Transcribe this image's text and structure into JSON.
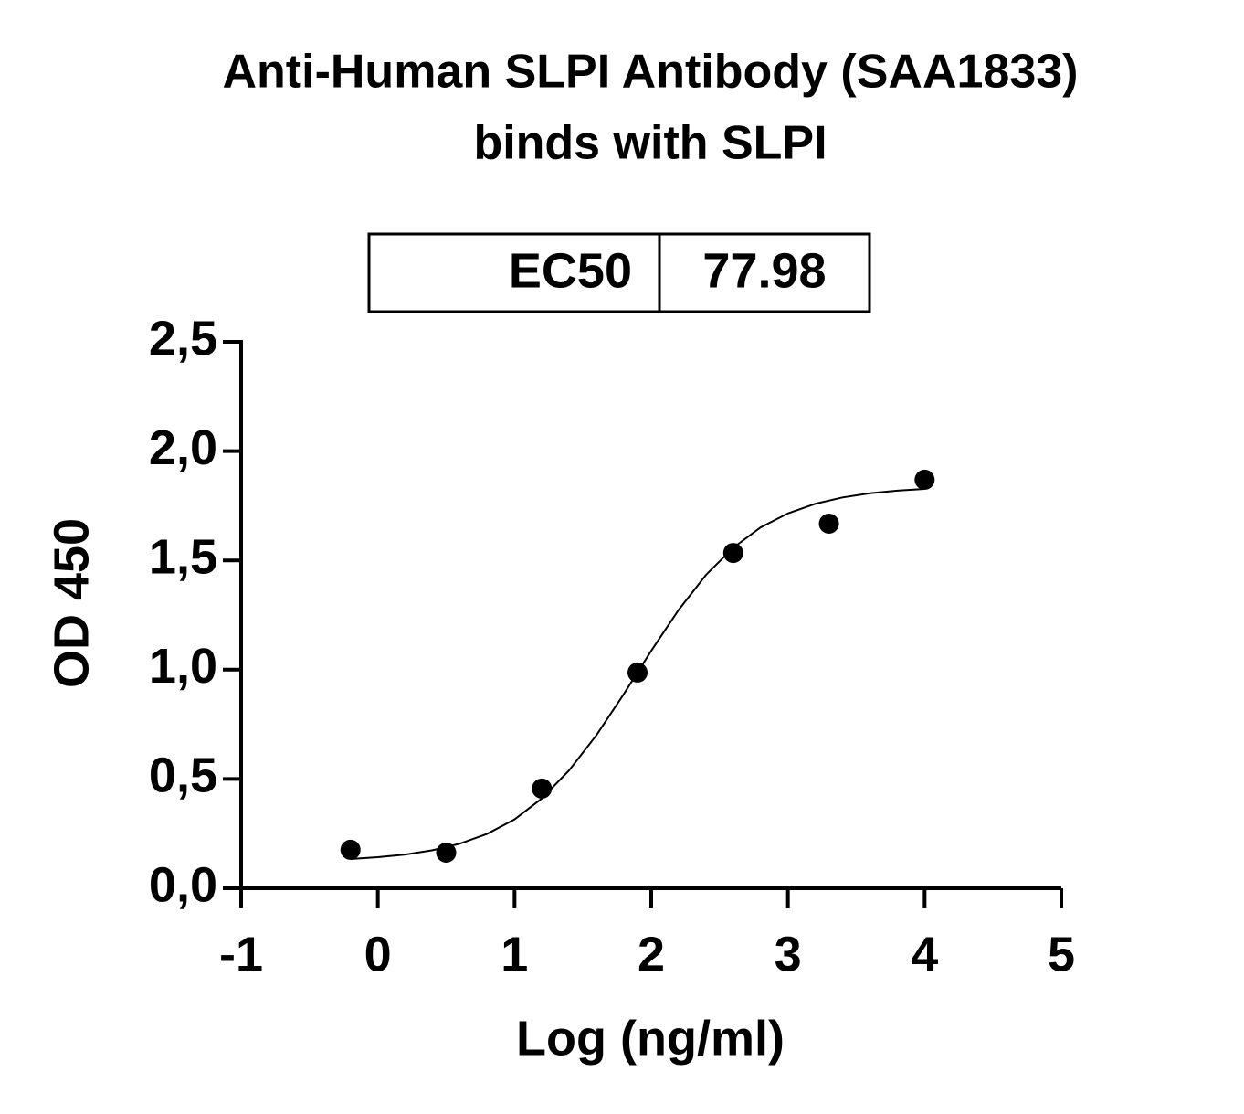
{
  "chart_data": {
    "type": "scatter",
    "title": [
      "Anti-Human SLPI Antibody (SAA1833)",
      "binds with SLPI"
    ],
    "table": [
      [
        "EC50",
        "77.98"
      ]
    ],
    "x_label": "Log (ng/ml)",
    "y_label": "OD 450",
    "xlim": [
      -1,
      5
    ],
    "xticks": [
      -1,
      0,
      1,
      2,
      3,
      4,
      5
    ],
    "ylim": [
      0,
      2.5
    ],
    "yticks": [
      {
        "value": 0,
        "label": "0,0"
      },
      {
        "value": 0.5,
        "label": "0,5"
      },
      {
        "value": 1,
        "label": "1,0"
      },
      {
        "value": 1.5,
        "label": "1,5"
      },
      {
        "value": 2,
        "label": "2,0"
      },
      {
        "value": 2.5,
        "label": "2,5"
      }
    ],
    "series": [
      {
        "type": "scatter",
        "color": "#000000",
        "x": [
          -0.2,
          0.5,
          1.2,
          1.9,
          2.6,
          3.3,
          4.0
        ],
        "values": [
          0.176,
          0.163,
          0.456,
          0.987,
          1.534,
          1.668,
          1.869
        ]
      },
      {
        "type": "line",
        "color": "#000000",
        "x": [
          -0.2,
          0,
          0.2,
          0.4,
          0.6,
          0.8,
          1.0,
          1.2,
          1.4,
          1.6,
          1.8,
          2.0,
          2.2,
          2.4,
          2.6,
          2.8,
          3.0,
          3.2,
          3.4,
          3.6,
          3.8,
          4.0
        ],
        "values": [
          0.134,
          0.142,
          0.154,
          0.174,
          0.204,
          0.249,
          0.315,
          0.411,
          0.54,
          0.701,
          0.889,
          1.086,
          1.273,
          1.433,
          1.558,
          1.651,
          1.715,
          1.759,
          1.788,
          1.807,
          1.819,
          1.827
        ]
      }
    ]
  }
}
